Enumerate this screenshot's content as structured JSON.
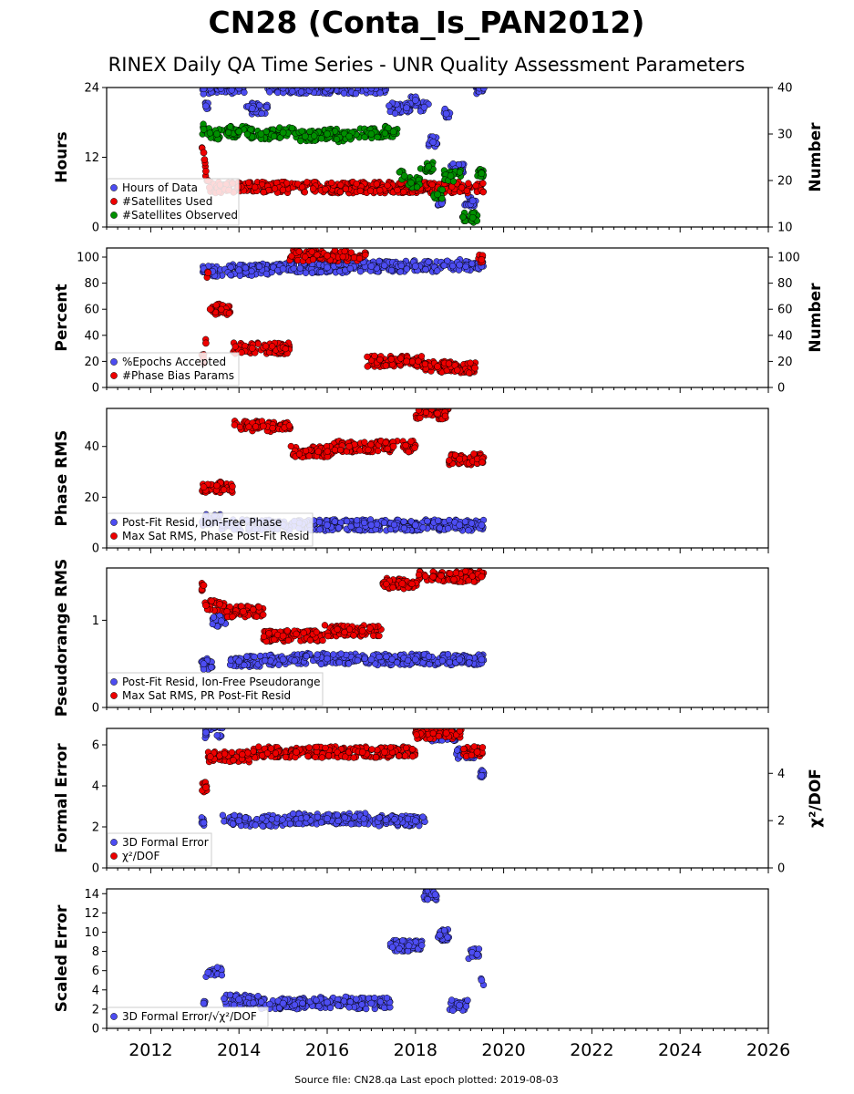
{
  "title": "CN28 (Conta_Is_PAN2012)",
  "subtitle": "RINEX Daily QA Time Series - UNR Quality Assessment Parameters",
  "footer": "Source file: CN28.qa Last epoch plotted: 2019-08-03",
  "colors": {
    "blue": "#4d4df2",
    "red": "#ee0000",
    "green": "#009000",
    "edge": "#000000"
  },
  "x_axis": {
    "range": [
      2011.0,
      2026.0
    ],
    "ticks": [
      "2012",
      "2014",
      "2016",
      "2018",
      "2020",
      "2022",
      "2024",
      "2026"
    ]
  },
  "chart_data": [
    {
      "type": "scatter",
      "ylabel": "Hours",
      "ylim": [
        0,
        24
      ],
      "yticks": [
        "0",
        "12",
        "24"
      ],
      "y2label": "Number",
      "y2lim": [
        10,
        40
      ],
      "y2ticks": [
        "10",
        "20",
        "30",
        "40"
      ],
      "legend_placement": "lower-left",
      "series": [
        {
          "name": "Hours of Data",
          "axis": "left",
          "color": "#4d4df2",
          "x": [
            2013.2,
            2013.25,
            2013.35,
            2014.0,
            2014.3,
            2015.0,
            2016.0,
            2017.0,
            2017.8,
            2018.0,
            2018.2,
            2018.4,
            2018.6,
            2018.7,
            2018.9,
            2019.3,
            2019.45,
            2019.55
          ],
          "y": [
            23.8,
            20.8,
            23.9,
            23.9,
            20.4,
            23.9,
            23.9,
            23.9,
            20.5,
            21.8,
            20.6,
            14.6,
            4.1,
            19.5,
            10.0,
            4.5,
            23.9,
            23.9
          ]
        },
        {
          "name": "#Satellites Used",
          "axis": "right",
          "color": "#ee0000",
          "x": [
            2013.2,
            2013.22,
            2013.25,
            2013.3,
            2013.33
          ],
          "y": [
            26.0,
            24.5,
            22.0,
            20.0,
            18.5
          ]
        },
        {
          "name": "#Satellites Observed",
          "axis": "right",
          "color": "#009000",
          "x": [
            2013.2,
            2013.5,
            2014.0,
            2014.5,
            2015.0,
            2015.5,
            2016.0,
            2016.5,
            2017.0,
            2017.5,
            2017.75,
            2017.9,
            2018.3,
            2018.5,
            2018.8,
            2019.3,
            2019.5
          ],
          "y": [
            31.0,
            30.0,
            30.5,
            30.0,
            30.3,
            29.5,
            30.0,
            29.5,
            30.0,
            30.5,
            21.0,
            19.5,
            23.0,
            17.0,
            21.0,
            12.0,
            21.5
          ]
        }
      ]
    },
    {
      "type": "scatter",
      "ylabel": "Percent",
      "ylim": [
        0,
        107
      ],
      "yticks": [
        "0",
        "20",
        "40",
        "60",
        "80",
        "100"
      ],
      "y2label": "Number",
      "y2lim": [
        0,
        107
      ],
      "y2ticks": [
        "0",
        "20",
        "40",
        "60",
        "80",
        "100"
      ],
      "legend_placement": "lower-left",
      "series": [
        {
          "name": "%Epochs Accepted",
          "axis": "left",
          "color": "#4d4df2",
          "x": [
            2013.2,
            2013.4,
            2014.0,
            2015.0,
            2016.0,
            2017.0,
            2018.0,
            2019.0,
            2019.5
          ],
          "y": [
            91,
            89,
            90,
            91,
            92,
            93,
            93,
            94,
            93
          ]
        },
        {
          "name": "#Phase Bias Params",
          "axis": "right",
          "color": "#ee0000",
          "x": [
            2013.2,
            2013.25,
            2013.3,
            2013.35,
            2014.3,
            2016.0,
            2017.8,
            2018.5,
            2019.35,
            2019.5
          ],
          "y": [
            22,
            34,
            88,
            60,
            30,
            101,
            20,
            16,
            15,
            98
          ]
        }
      ]
    },
    {
      "type": "scatter",
      "ylabel": "Phase RMS",
      "ylim": [
        0,
        55
      ],
      "yticks": [
        "0",
        "20",
        "40"
      ],
      "legend_placement": "lower-left",
      "series": [
        {
          "name": "Post-Fit Resid, Ion-Free Phase",
          "axis": "left",
          "color": "#4d4df2",
          "x": [
            2013.2,
            2014.0,
            2015.0,
            2016.0,
            2017.0,
            2018.0,
            2019.0,
            2019.5
          ],
          "y": [
            11,
            9,
            9,
            9,
            9,
            9,
            9,
            9
          ]
        },
        {
          "name": "Max Sat RMS, Phase Post-Fit Resid",
          "axis": "left",
          "color": "#ee0000",
          "x": [
            2013.2,
            2014.55,
            2015.8,
            2016.5,
            2017.5,
            2018.5,
            2019.0
          ],
          "y": [
            24,
            48,
            38,
            40,
            40,
            53,
            35
          ]
        }
      ]
    },
    {
      "type": "scatter",
      "ylabel": "Pseudorange RMS",
      "ylim": [
        0,
        1.6
      ],
      "yticks": [
        "0",
        "1"
      ],
      "legend_placement": "lower-left",
      "series": [
        {
          "name": "Post-Fit Resid, Ion-Free Pseudorange",
          "axis": "left",
          "color": "#4d4df2",
          "x": [
            2013.2,
            2013.6,
            2014.0,
            2015.0,
            2016.0,
            2017.0,
            2018.0,
            2019.0,
            2019.5
          ],
          "y": [
            0.5,
            0.99,
            0.53,
            0.55,
            0.56,
            0.55,
            0.55,
            0.55,
            0.55
          ]
        },
        {
          "name": "Max Sat RMS, PR Post-Fit Resid",
          "axis": "left",
          "color": "#ee0000",
          "x": [
            2013.2,
            2013.25,
            2014.1,
            2015.0,
            2016.8,
            2017.7,
            2018.4,
            2019.5
          ],
          "y": [
            1.4,
            1.17,
            1.1,
            0.82,
            0.88,
            1.42,
            1.5,
            1.5
          ]
        }
      ]
    },
    {
      "type": "scatter",
      "ylabel": "Formal Error",
      "ylim": [
        0,
        6.8
      ],
      "yticks": [
        "0",
        "2",
        "4",
        "6"
      ],
      "y2label": "χ²/DOF",
      "y2lim": [
        0,
        5.9
      ],
      "y2ticks": [
        "0",
        "2",
        "4"
      ],
      "legend_placement": "lower-left",
      "series": [
        {
          "name": "3D Formal Error",
          "axis": "left",
          "color": "#4d4df2",
          "x": [
            2013.2,
            2013.25,
            2014.0,
            2016.0,
            2018.0,
            2018.45,
            2019.4,
            2019.5
          ],
          "y": [
            2.2,
            6.6,
            2.3,
            2.4,
            2.3,
            6.4,
            5.6,
            4.5
          ]
        },
        {
          "name": "χ²/DOF",
          "axis": "right",
          "color": "#ee0000",
          "x": [
            2013.25,
            2013.35,
            2015.3,
            2016.8,
            2017.3,
            2018.7,
            2019.4
          ],
          "y": [
            3.4,
            4.7,
            4.9,
            4.9,
            4.9,
            5.7,
            4.9
          ]
        }
      ]
    },
    {
      "type": "scatter",
      "ylabel": "Scaled Error",
      "ylim": [
        0,
        14.5
      ],
      "yticks": [
        "0",
        "2",
        "4",
        "6",
        "8",
        "10",
        "12",
        "14"
      ],
      "legend_placement": "lower-left",
      "series": [
        {
          "name": "3D Formal Error/√χ²/DOF",
          "axis": "left",
          "color": "#4d4df2",
          "x": [
            2013.2,
            2013.3,
            2014.0,
            2015.0,
            2016.0,
            2017.0,
            2017.85,
            2018.45,
            2018.55,
            2019.0,
            2019.4,
            2019.5
          ],
          "y": [
            2.6,
            5.8,
            3.0,
            2.6,
            2.7,
            2.6,
            8.6,
            13.9,
            9.7,
            2.4,
            7.7,
            5.0
          ]
        }
      ]
    }
  ]
}
